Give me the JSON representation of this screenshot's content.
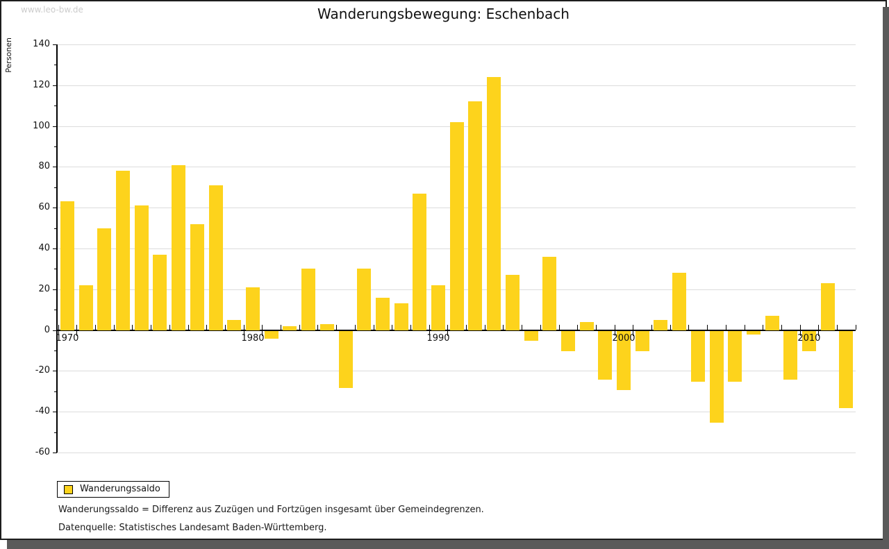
{
  "watermark": "www.leo-bw.de",
  "title": "Wanderungsbewegung: Eschenbach",
  "legend": {
    "label": "Wanderungssaldo"
  },
  "footnotes": {
    "definition": "Wanderungssaldo = Differenz aus Zuzügen und Fortzügen insgesamt über Gemeindegrenzen.",
    "source": "Datenquelle: Statistisches Landesamt Baden-Württemberg."
  },
  "chart_data": {
    "type": "bar",
    "title": "Wanderungsbewegung: Eschenbach",
    "ylabel": "Personen",
    "xlabel": "",
    "series_name": "Wanderungssaldo",
    "x": [
      1970,
      1971,
      1972,
      1973,
      1974,
      1975,
      1976,
      1977,
      1978,
      1979,
      1980,
      1981,
      1982,
      1983,
      1984,
      1985,
      1986,
      1987,
      1988,
      1989,
      1990,
      1991,
      1992,
      1993,
      1994,
      1995,
      1996,
      1997,
      1998,
      1999,
      2000,
      2001,
      2002,
      2003,
      2004,
      2005,
      2006,
      2007,
      2008,
      2009,
      2010,
      2011,
      2012
    ],
    "values": [
      63,
      22,
      50,
      78,
      61,
      37,
      81,
      52,
      71,
      5,
      21,
      -4,
      2,
      30,
      3,
      -28,
      30,
      16,
      13,
      67,
      22,
      102,
      112,
      124,
      27,
      -5,
      36,
      -10,
      4,
      -24,
      -29,
      -10,
      5,
      28,
      -25,
      -45,
      -25,
      -2,
      7,
      -24,
      -10,
      23,
      -38
    ],
    "ylim": [
      -60,
      140
    ],
    "ytick_step": 20,
    "xticks": [
      1970,
      1980,
      1990,
      2000,
      2010
    ],
    "grid": true,
    "legend_position": "bottom-left",
    "colors": {
      "bar": "#fdd31c",
      "grid": "#dcdcdc",
      "axis": "#000000",
      "watermark": "#cccccc",
      "text": "#111111"
    }
  }
}
